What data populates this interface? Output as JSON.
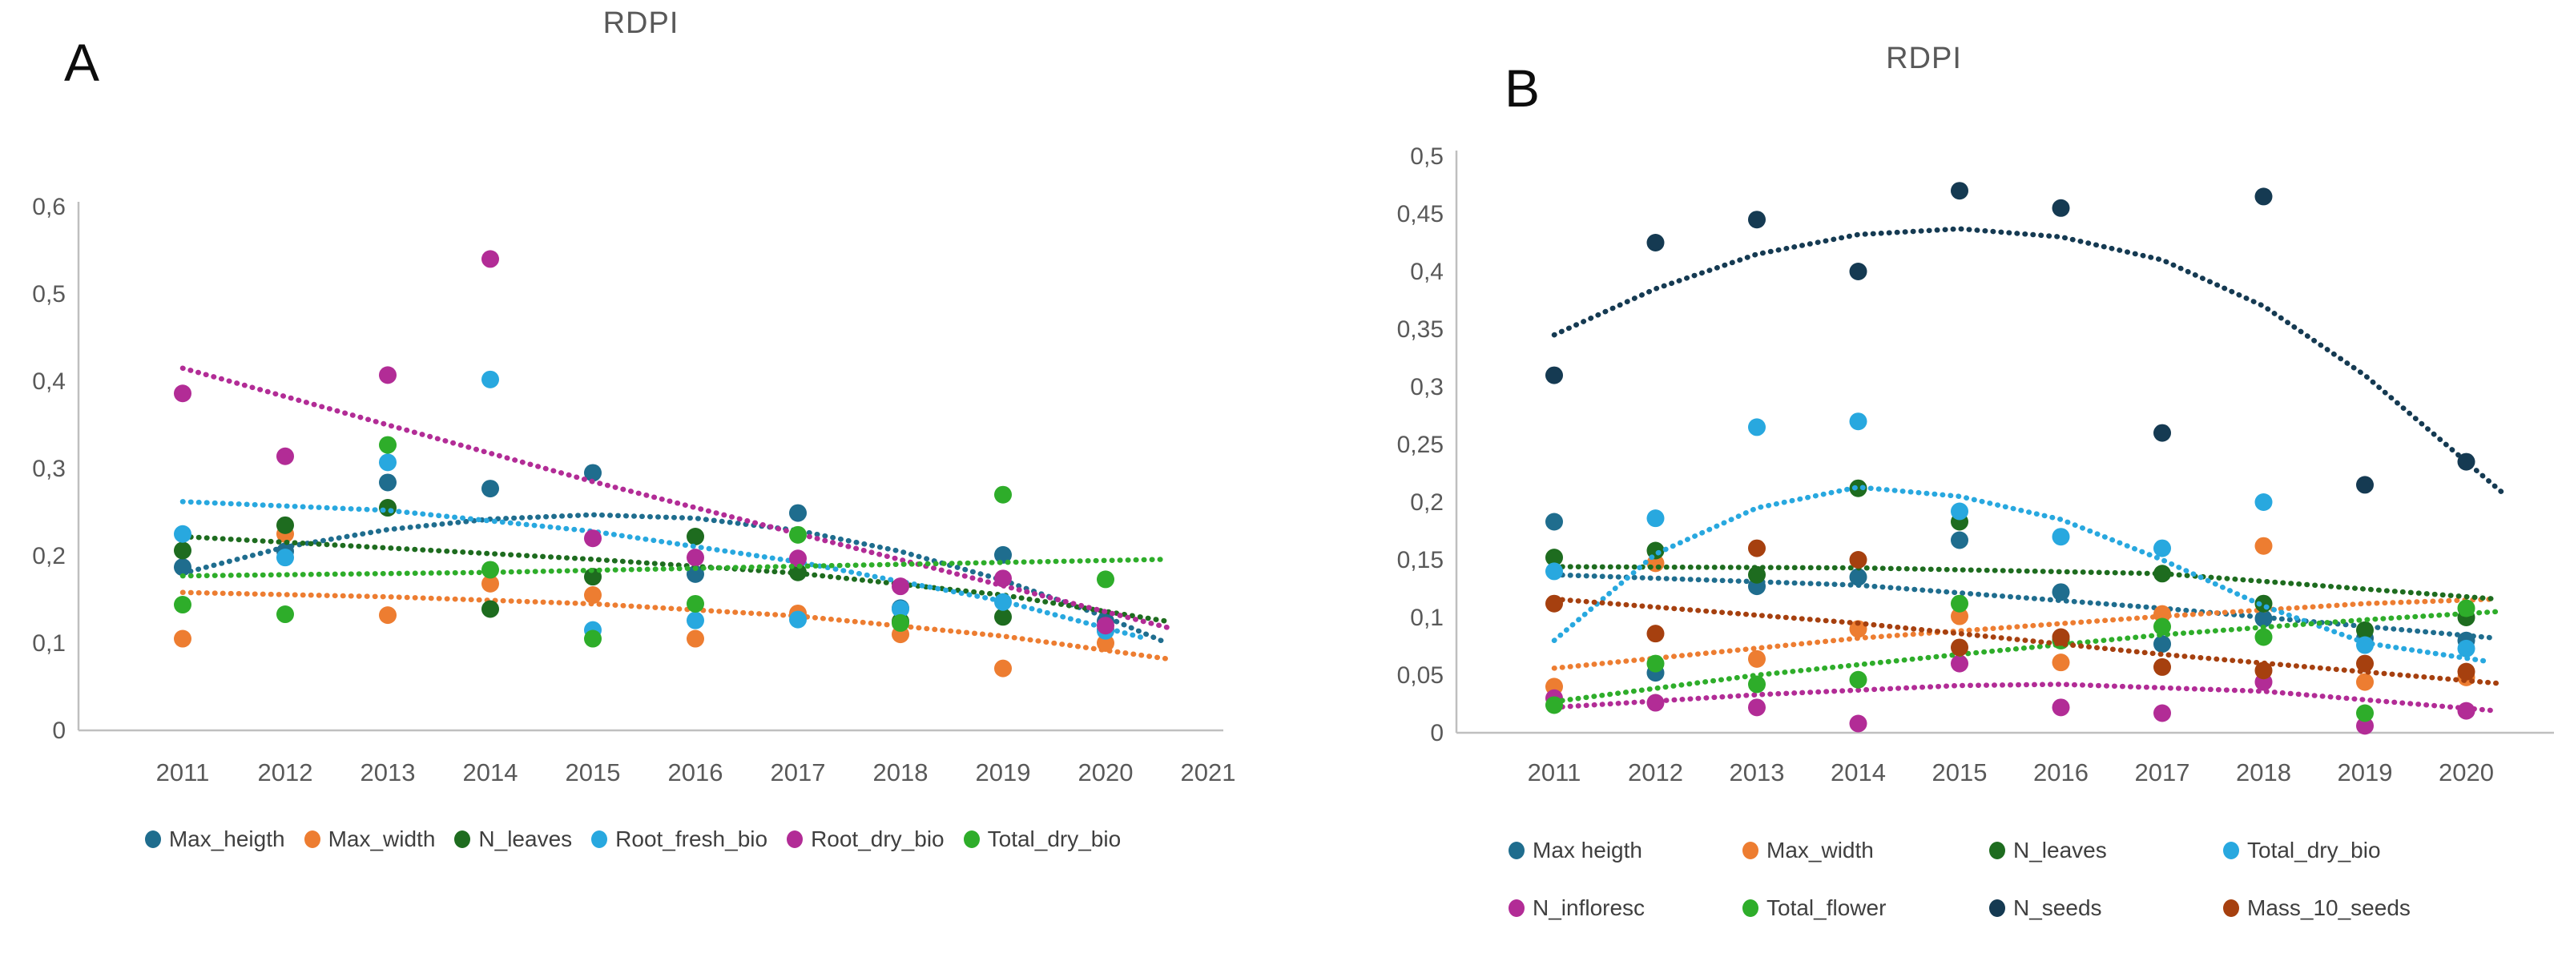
{
  "figure": {
    "background": "#ffffff",
    "axis_color": "#bfbfbf",
    "tick_text_color": "#595959",
    "legend_text_color": "#3f3f3f"
  },
  "chart_data": [
    {
      "type": "scatter",
      "panel_label": "A",
      "title": "RDPI",
      "grid": false,
      "legend_position": "bottom",
      "x_values": [
        2011,
        2012,
        2013,
        2014,
        2015,
        2016,
        2017,
        2018,
        2019,
        2020
      ],
      "x_ticks": [
        "2011",
        "2012",
        "2013",
        "2014",
        "2015",
        "2016",
        "2017",
        "2018",
        "2019",
        "2020",
        "2021"
      ],
      "x_tick_values": [
        2011,
        2012,
        2013,
        2014,
        2015,
        2016,
        2017,
        2018,
        2019,
        2020,
        2021
      ],
      "y_axis": {
        "min": 0,
        "max": 0.6,
        "tick_values": [
          0,
          0.1,
          0.2,
          0.3,
          0.4,
          0.5,
          0.6
        ],
        "tick_labels": [
          "0",
          "0,1",
          "0,2",
          "0,3",
          "0,4",
          "0,5",
          "0,6"
        ]
      },
      "series": [
        {
          "name": "Max_heigth",
          "color": "#1F6D8E",
          "values": [
            0.187,
            0.205,
            0.284,
            0.277,
            0.295,
            0.179,
            0.249,
            0.14,
            0.201,
            0.125
          ],
          "trend": [
            [
              2011,
              0.18
            ],
            [
              2012,
              0.21
            ],
            [
              2013,
              0.23
            ],
            [
              2014,
              0.242
            ],
            [
              2015,
              0.247
            ],
            [
              2016,
              0.243
            ],
            [
              2017,
              0.229
            ],
            [
              2018,
              0.205
            ],
            [
              2019,
              0.172
            ],
            [
              2020,
              0.13
            ],
            [
              2020.6,
              0.1
            ]
          ]
        },
        {
          "name": "Max_width",
          "color": "#ED7D31",
          "values": [
            0.105,
            0.225,
            0.132,
            0.168,
            0.155,
            0.105,
            0.134,
            0.11,
            0.071,
            0.1
          ],
          "trend": [
            [
              2011,
              0.158
            ],
            [
              2013,
              0.153
            ],
            [
              2015,
              0.145
            ],
            [
              2017,
              0.131
            ],
            [
              2019,
              0.108
            ],
            [
              2020.6,
              0.082
            ]
          ]
        },
        {
          "name": "N_leaves",
          "color": "#1E6C1F",
          "values": [
            0.206,
            0.235,
            0.255,
            0.139,
            0.176,
            0.222,
            0.181,
            0.125,
            0.13,
            0.115
          ],
          "trend": [
            [
              2011,
              0.222
            ],
            [
              2013,
              0.209
            ],
            [
              2015,
              0.196
            ],
            [
              2017,
              0.18
            ],
            [
              2019,
              0.155
            ],
            [
              2020.6,
              0.125
            ]
          ]
        },
        {
          "name": "Root_fresh_bio",
          "color": "#28A8DF",
          "values": [
            0.225,
            0.198,
            0.307,
            0.402,
            0.115,
            0.126,
            0.127,
            0.139,
            0.147,
            0.114
          ],
          "trend": [
            [
              2011,
              0.262
            ],
            [
              2013,
              0.252
            ],
            [
              2015,
              0.228
            ],
            [
              2017,
              0.193
            ],
            [
              2019,
              0.148
            ],
            [
              2020.4,
              0.105
            ]
          ]
        },
        {
          "name": "Root_dry_bio",
          "color": "#B22C96",
          "values": [
            0.386,
            0.314,
            0.407,
            0.54,
            0.22,
            0.198,
            0.197,
            0.165,
            0.174,
            0.12
          ],
          "trend": [
            [
              2011,
              0.415
            ],
            [
              2015,
              0.285
            ],
            [
              2020.6,
              0.118
            ]
          ]
        },
        {
          "name": "Total_dry_bio",
          "color": "#2EAD2A",
          "values": [
            0.144,
            0.133,
            0.327,
            0.184,
            0.105,
            0.145,
            0.224,
            0.123,
            0.27,
            0.173
          ],
          "trend": [
            [
              2011,
              0.177
            ],
            [
              2014,
              0.181
            ],
            [
              2017,
              0.188
            ],
            [
              2020.6,
              0.196
            ]
          ]
        }
      ]
    },
    {
      "type": "scatter",
      "panel_label": "B",
      "title": "RDPI",
      "grid": false,
      "legend_position": "bottom",
      "x_values": [
        2011,
        2012,
        2013,
        2014,
        2015,
        2016,
        2017,
        2018,
        2019,
        2020
      ],
      "x_ticks": [
        "2011",
        "2012",
        "2013",
        "2014",
        "2015",
        "2016",
        "2017",
        "2018",
        "2019",
        "2020"
      ],
      "x_tick_values": [
        2011,
        2012,
        2013,
        2014,
        2015,
        2016,
        2017,
        2018,
        2019,
        2020
      ],
      "y_axis": {
        "min": 0,
        "max": 0.5,
        "tick_values": [
          0,
          0.05,
          0.1,
          0.15,
          0.2,
          0.25,
          0.3,
          0.35,
          0.4,
          0.45,
          0.5
        ],
        "tick_labels": [
          "0",
          "0,05",
          "0,1",
          "0,15",
          "0,2",
          "0,25",
          "0,3",
          "0,35",
          "0,4",
          "0,45",
          "0,5"
        ]
      },
      "series": [
        {
          "name": "Max heigth",
          "color": "#1F6D8E",
          "values": [
            0.183,
            0.052,
            0.127,
            0.135,
            0.167,
            0.122,
            0.077,
            0.099,
            0.082,
            0.08
          ],
          "trend": [
            [
              2011,
              0.137
            ],
            [
              2014,
              0.128
            ],
            [
              2017,
              0.108
            ],
            [
              2020.3,
              0.082
            ]
          ]
        },
        {
          "name": "Max_width",
          "color": "#ED7D31",
          "values": [
            0.04,
            0.147,
            0.064,
            0.09,
            0.101,
            0.061,
            0.103,
            0.162,
            0.044,
            0.048
          ],
          "trend": [
            [
              2011,
              0.056
            ],
            [
              2014,
              0.082
            ],
            [
              2017,
              0.101
            ],
            [
              2019,
              0.112
            ],
            [
              2020.3,
              0.116
            ]
          ]
        },
        {
          "name": "N_leaves",
          "color": "#1E6C1F",
          "values": [
            0.152,
            0.158,
            0.137,
            0.212,
            0.183,
            0.08,
            0.138,
            0.112,
            0.089,
            0.1
          ],
          "trend": [
            [
              2011,
              0.144
            ],
            [
              2014,
              0.143
            ],
            [
              2017,
              0.138
            ],
            [
              2020.3,
              0.116
            ]
          ]
        },
        {
          "name": "Total_dry_bio",
          "color": "#28A8DF",
          "values": [
            0.14,
            0.186,
            0.265,
            0.27,
            0.192,
            0.17,
            0.16,
            0.2,
            0.076,
            0.073
          ],
          "trend": [
            [
              2011,
              0.08
            ],
            [
              2012,
              0.155
            ],
            [
              2013,
              0.195
            ],
            [
              2014,
              0.213
            ],
            [
              2015,
              0.205
            ],
            [
              2016,
              0.185
            ],
            [
              2017,
              0.15
            ],
            [
              2018,
              0.11
            ],
            [
              2019,
              0.078
            ],
            [
              2020.2,
              0.062
            ]
          ]
        },
        {
          "name": "N_infloresc",
          "color": "#B22C96",
          "values": [
            0.03,
            0.026,
            0.022,
            0.008,
            0.06,
            0.022,
            0.017,
            0.044,
            0.006,
            0.019
          ],
          "trend": [
            [
              2011,
              0.022
            ],
            [
              2013,
              0.033
            ],
            [
              2015,
              0.041
            ],
            [
              2016,
              0.042
            ],
            [
              2018,
              0.036
            ],
            [
              2020.3,
              0.019
            ]
          ]
        },
        {
          "name": "Total_flower",
          "color": "#2EAD2A",
          "values": [
            0.024,
            0.06,
            0.042,
            0.046,
            0.112,
            0.08,
            0.092,
            0.083,
            0.017,
            0.108
          ],
          "trend": [
            [
              2011,
              0.027
            ],
            [
              2013,
              0.05
            ],
            [
              2015,
              0.068
            ],
            [
              2017,
              0.085
            ],
            [
              2019,
              0.098
            ],
            [
              2020.3,
              0.105
            ]
          ]
        },
        {
          "name": "N_seeds",
          "color": "#153A52",
          "values": [
            0.31,
            0.425,
            0.445,
            0.4,
            0.47,
            0.455,
            0.26,
            0.465,
            0.215,
            0.235
          ],
          "trend": [
            [
              2011,
              0.345
            ],
            [
              2012,
              0.385
            ],
            [
              2013,
              0.415
            ],
            [
              2014,
              0.432
            ],
            [
              2015,
              0.437
            ],
            [
              2016,
              0.43
            ],
            [
              2017,
              0.41
            ],
            [
              2018,
              0.37
            ],
            [
              2019,
              0.31
            ],
            [
              2020,
              0.235
            ],
            [
              2020.4,
              0.205
            ]
          ]
        },
        {
          "name": "Mass_10_seeds",
          "color": "#A6400F",
          "values": [
            0.112,
            0.086,
            0.16,
            0.15,
            0.074,
            0.083,
            0.057,
            0.054,
            0.06,
            0.053
          ],
          "trend": [
            [
              2011,
              0.116
            ],
            [
              2014,
              0.095
            ],
            [
              2017,
              0.068
            ],
            [
              2020.3,
              0.043
            ]
          ]
        }
      ]
    }
  ]
}
